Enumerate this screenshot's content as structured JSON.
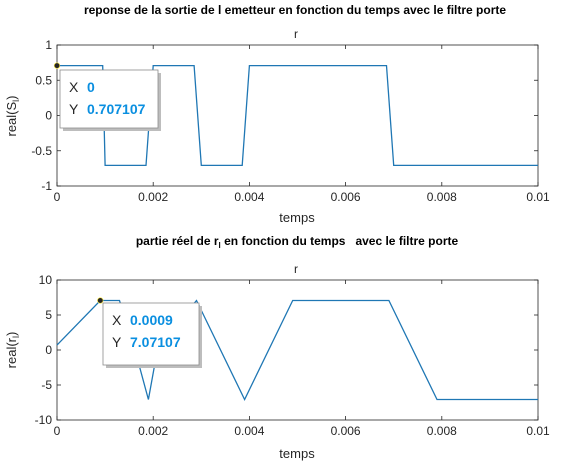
{
  "colors": {
    "line": "#1f77b4",
    "axis": "#262626",
    "tip_value": "#0a8fe0"
  },
  "chart_data": [
    {
      "type": "line",
      "title": "reponse de la sortie de l emetteur en fonction du temps avec le filtre porte",
      "subtitle": "r",
      "xlabel": "temps",
      "ylabel": "real(S",
      "ylabel_sub": "l",
      "ylabel_close": ")",
      "xlim": [
        0,
        0.01
      ],
      "ylim": [
        -1,
        1
      ],
      "xticks": [
        0,
        0.002,
        0.004,
        0.006,
        0.008,
        0.01
      ],
      "xtick_labels": [
        "0",
        "0.002",
        "0.004",
        "0.006",
        "0.008",
        "0.01"
      ],
      "yticks": [
        -1,
        -0.5,
        0,
        0.5,
        1
      ],
      "ytick_labels": [
        "-1",
        "-0.5",
        "0",
        "0.5",
        "1"
      ],
      "series": [
        {
          "x": [
            0,
            0.00095,
            0.001,
            0.00185,
            0.002,
            0.00285,
            0.003,
            0.00385,
            0.004,
            0.00685,
            0.007,
            0.01
          ],
          "y": [
            0.707107,
            0.707107,
            -0.707107,
            -0.707107,
            0.707107,
            0.707107,
            -0.707107,
            -0.707107,
            0.707107,
            0.707107,
            -0.707107,
            -0.707107
          ]
        }
      ],
      "datatip": {
        "x_key": "X",
        "x_value": "0",
        "y_key": "Y",
        "y_value": "0.707107",
        "px": 0,
        "py": 0.707107
      }
    },
    {
      "type": "line",
      "title": "partie réel de r",
      "title_sub": "l",
      "title_rest": " en fonction du temps   avec le filtre porte",
      "subtitle": "r",
      "xlabel": "temps",
      "ylabel": "real(r",
      "ylabel_sub": "l",
      "ylabel_close": ")",
      "xlim": [
        0,
        0.01
      ],
      "ylim": [
        -10,
        10
      ],
      "xticks": [
        0,
        0.002,
        0.004,
        0.006,
        0.008,
        0.01
      ],
      "xtick_labels": [
        "0",
        "0.002",
        "0.004",
        "0.006",
        "0.008",
        "0.01"
      ],
      "yticks": [
        -10,
        -5,
        0,
        5,
        10
      ],
      "ytick_labels": [
        "-10",
        "-5",
        "0",
        "5",
        "10"
      ],
      "series": [
        {
          "x": [
            0,
            0.0009,
            0.0013,
            0.0017,
            0.0019,
            0.0021,
            0.0029,
            0.0039,
            0.0049,
            0.0069,
            0.0079,
            0.01
          ],
          "y": [
            0.707107,
            7.07107,
            7.07107,
            -2,
            -7.07107,
            0.5,
            7.07107,
            -7.07107,
            7.07107,
            7.07107,
            -7.07107,
            -7.07107
          ]
        }
      ],
      "datatip": {
        "x_key": "X",
        "x_value": "0.0009",
        "y_key": "Y",
        "y_value": "7.07107",
        "px": 0.0009,
        "py": 7.07107
      }
    }
  ]
}
